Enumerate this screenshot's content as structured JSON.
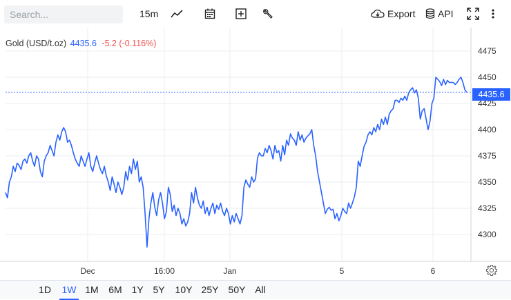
{
  "toolbar": {
    "search_placeholder": "Search...",
    "interval": "15m",
    "export_label": "Export",
    "api_label": "API"
  },
  "legend": {
    "name": "Gold (USD/t.oz)",
    "price": "4435.6",
    "change": "-5.2 (-0.116%)"
  },
  "last_price_label": "4435.6",
  "periods": [
    "1D",
    "1W",
    "1M",
    "6M",
    "1Y",
    "5Y",
    "10Y",
    "25Y",
    "50Y",
    "All"
  ],
  "active_period": "1W",
  "colors": {
    "line": "#2962ff",
    "negative": "#ef5350",
    "grid": "#e9ecf1"
  },
  "chart_data": {
    "type": "line",
    "title": "Gold (USD/t.oz)",
    "y_ticks": [
      4300,
      4325,
      4350,
      4375,
      4400,
      4425,
      4450,
      4475
    ],
    "ylim": [
      4275,
      4487
    ],
    "x_tick_labels": [
      "Dec",
      "16:00",
      "Jan",
      "5",
      "6"
    ],
    "last_price": 4435.6,
    "grid": true,
    "series": [
      {
        "values": [
          4340,
          4335,
          4350,
          4355,
          4365,
          4360,
          4368,
          4366,
          4362,
          4370,
          4372,
          4368,
          4375,
          4378,
          4370,
          4365,
          4375,
          4372,
          4360,
          4355,
          4370,
          4375,
          4378,
          4385,
          4380,
          4375,
          4388,
          4395,
          4390,
          4398,
          4402,
          4398,
          4388,
          4390,
          4385,
          4378,
          4372,
          4368,
          4365,
          4375,
          4370,
          4365,
          4372,
          4378,
          4365,
          4360,
          4368,
          4375,
          4368,
          4362,
          4358,
          4365,
          4356,
          4350,
          4342,
          4355,
          4348,
          4340,
          4350,
          4345,
          4338,
          4345,
          4360,
          4352,
          4365,
          4358,
          4372,
          4362,
          4370,
          4350,
          4355,
          4345,
          4320,
          4288,
          4315,
          4330,
          4340,
          4326,
          4318,
          4333,
          4340,
          4330,
          4315,
          4322,
          4345,
          4338,
          4322,
          4328,
          4318,
          4325,
          4320,
          4310,
          4315,
          4308,
          4312,
          4320,
          4340,
          4330,
          4345,
          4335,
          4328,
          4325,
          4332,
          4320,
          4326,
          4318,
          4325,
          4330,
          4320,
          4328,
          4324,
          4330,
          4322,
          4318,
          4325,
          4320,
          4310,
          4318,
          4312,
          4320,
          4315,
          4310,
          4318,
          4345,
          4352,
          4348,
          4345,
          4355,
          4350,
          4353,
          4373,
          4378,
          4375,
          4375,
          4382,
          4378,
          4385,
          4380,
          4372,
          4385,
          4378,
          4380,
          4370,
          4385,
          4376,
          4390,
          4385,
          4396,
          4392,
          4390,
          4385,
          4398,
          4390,
          4395,
          4388,
          4392,
          4394,
          4396,
          4400,
          4385,
          4375,
          4360,
          4350,
          4340,
          4330,
          4320,
          4324,
          4326,
          4323,
          4324,
          4315,
          4320,
          4313,
          4318,
          4325,
          4322,
          4320,
          4330,
          4325,
          4330,
          4336,
          4345,
          4370,
          4365,
          4375,
          4384,
          4388,
          4395,
          4398,
          4395,
          4402,
          4398,
          4405,
          4400,
          4410,
          4405,
          4412,
          4405,
          4415,
          4418,
          4420,
          4428,
          4428,
          4426,
          4430,
          4428,
          4432,
          4428,
          4435,
          4438,
          4440,
          4435,
          4438,
          4430,
          4410,
          4418,
          4420,
          4410,
          4400,
          4408,
          4425,
          4430,
          4450,
          4448,
          4446,
          4442,
          4448,
          4443,
          4447,
          4445,
          4445,
          4445,
          4443,
          4445,
          4448,
          4450,
          4445,
          4438,
          4435.6
        ]
      }
    ]
  }
}
